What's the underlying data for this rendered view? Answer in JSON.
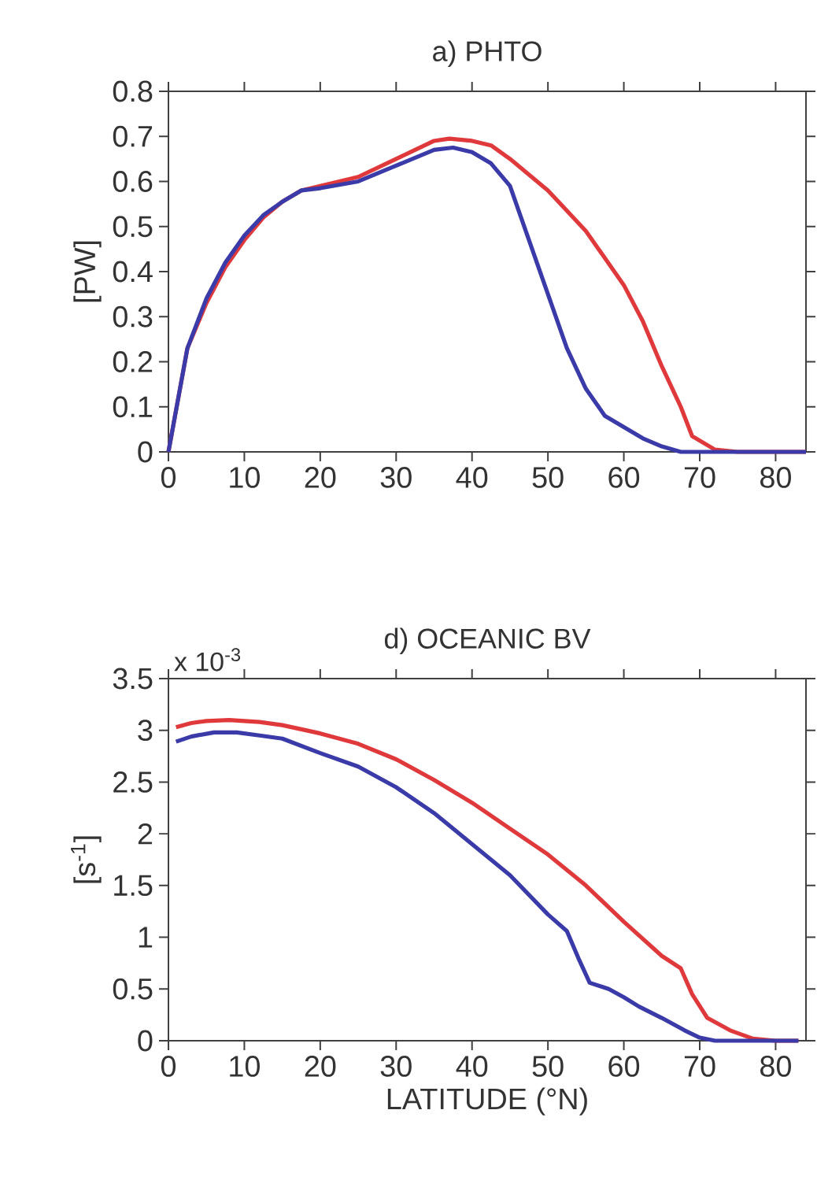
{
  "chart_data": [
    {
      "type": "line",
      "title": "a) PHTO",
      "ylabel": "[PW]",
      "xlim": [
        0,
        84
      ],
      "ylim": [
        0,
        0.8
      ],
      "xticks": [
        0,
        10,
        20,
        30,
        40,
        50,
        60,
        70,
        80
      ],
      "yticks": [
        0,
        0.1,
        0.2,
        0.3,
        0.4,
        0.5,
        0.6,
        0.7,
        0.8
      ],
      "series": [
        {
          "color": "#e0393c",
          "x": [
            0,
            2.5,
            5,
            7.5,
            10,
            12.5,
            15,
            17.5,
            20,
            25,
            30,
            35,
            37,
            40,
            42.5,
            45,
            50,
            55,
            60,
            62.5,
            65,
            67.5,
            69,
            72,
            75,
            84
          ],
          "values": [
            0,
            0.23,
            0.33,
            0.41,
            0.47,
            0.52,
            0.555,
            0.58,
            0.59,
            0.61,
            0.65,
            0.69,
            0.695,
            0.69,
            0.68,
            0.65,
            0.58,
            0.49,
            0.37,
            0.29,
            0.19,
            0.1,
            0.035,
            0.005,
            0,
            0
          ]
        },
        {
          "color": "#3a3aa8",
          "x": [
            0,
            2.5,
            5,
            7.5,
            10,
            12.5,
            15,
            17.5,
            20,
            25,
            30,
            35,
            37.5,
            40,
            42.5,
            45,
            47.5,
            50,
            52.5,
            55,
            57.5,
            60,
            62.5,
            65,
            67.5,
            84
          ],
          "values": [
            0,
            0.23,
            0.34,
            0.42,
            0.48,
            0.525,
            0.555,
            0.58,
            0.585,
            0.6,
            0.635,
            0.67,
            0.675,
            0.665,
            0.64,
            0.59,
            0.47,
            0.35,
            0.23,
            0.14,
            0.08,
            0.055,
            0.03,
            0.012,
            0,
            0
          ]
        }
      ]
    },
    {
      "type": "line",
      "title": "d) OCEANIC BV",
      "xlabel": "LATITUDE (°N)",
      "ylabel": "[s$^{-1}$]",
      "annotations": [
        "x 10$^{-3}$"
      ],
      "xlim": [
        0,
        84
      ],
      "ylim": [
        0,
        3.5
      ],
      "xticks": [
        0,
        10,
        20,
        30,
        40,
        50,
        60,
        70,
        80
      ],
      "yticks": [
        0,
        0.5,
        1,
        1.5,
        2,
        2.5,
        3,
        3.5
      ],
      "series": [
        {
          "color": "#e0393c",
          "x": [
            1,
            3,
            5,
            8,
            12,
            15,
            20,
            25,
            30,
            35,
            40,
            45,
            50,
            55,
            60,
            65,
            67.5,
            69,
            71,
            74,
            77,
            80,
            83
          ],
          "values": [
            3.03,
            3.07,
            3.09,
            3.1,
            3.08,
            3.05,
            2.97,
            2.87,
            2.72,
            2.52,
            2.3,
            2.05,
            1.8,
            1.5,
            1.15,
            0.82,
            0.7,
            0.45,
            0.22,
            0.1,
            0.02,
            0,
            0
          ]
        },
        {
          "color": "#3a3aa8",
          "x": [
            1,
            3,
            6,
            9,
            12,
            15,
            20,
            25,
            30,
            35,
            40,
            45,
            50,
            52.5,
            54,
            55.5,
            58,
            60,
            62,
            65,
            68,
            70,
            72,
            83
          ],
          "values": [
            2.89,
            2.94,
            2.98,
            2.98,
            2.95,
            2.92,
            2.78,
            2.65,
            2.45,
            2.2,
            1.9,
            1.6,
            1.22,
            1.06,
            0.8,
            0.56,
            0.5,
            0.42,
            0.33,
            0.22,
            0.1,
            0.03,
            0,
            0
          ]
        }
      ]
    }
  ]
}
